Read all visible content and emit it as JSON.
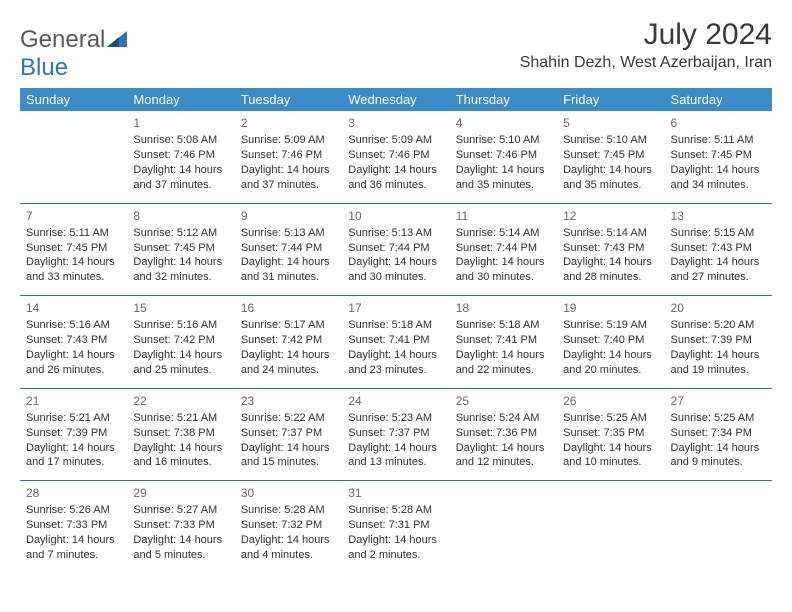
{
  "logo": {
    "general": "General",
    "blue": "Blue"
  },
  "header": {
    "month": "July 2024",
    "location": "Shahin Dezh, West Azerbaijan, Iran"
  },
  "colors": {
    "header_bg": "#3b8bc9",
    "header_text": "#ffffff",
    "row_border": "#3b6fa0",
    "text": "#333333",
    "daynum": "#6a6a6a",
    "logo_gray": "#5a5a5a",
    "logo_blue": "#2e75b6"
  },
  "day_names": [
    "Sunday",
    "Monday",
    "Tuesday",
    "Wednesday",
    "Thursday",
    "Friday",
    "Saturday"
  ],
  "weeks": [
    [
      null,
      {
        "n": "1",
        "sr": "Sunrise: 5:08 AM",
        "ss": "Sunset: 7:46 PM",
        "dl": "Daylight: 14 hours and 37 minutes."
      },
      {
        "n": "2",
        "sr": "Sunrise: 5:09 AM",
        "ss": "Sunset: 7:46 PM",
        "dl": "Daylight: 14 hours and 37 minutes."
      },
      {
        "n": "3",
        "sr": "Sunrise: 5:09 AM",
        "ss": "Sunset: 7:46 PM",
        "dl": "Daylight: 14 hours and 36 minutes."
      },
      {
        "n": "4",
        "sr": "Sunrise: 5:10 AM",
        "ss": "Sunset: 7:46 PM",
        "dl": "Daylight: 14 hours and 35 minutes."
      },
      {
        "n": "5",
        "sr": "Sunrise: 5:10 AM",
        "ss": "Sunset: 7:45 PM",
        "dl": "Daylight: 14 hours and 35 minutes."
      },
      {
        "n": "6",
        "sr": "Sunrise: 5:11 AM",
        "ss": "Sunset: 7:45 PM",
        "dl": "Daylight: 14 hours and 34 minutes."
      }
    ],
    [
      {
        "n": "7",
        "sr": "Sunrise: 5:11 AM",
        "ss": "Sunset: 7:45 PM",
        "dl": "Daylight: 14 hours and 33 minutes."
      },
      {
        "n": "8",
        "sr": "Sunrise: 5:12 AM",
        "ss": "Sunset: 7:45 PM",
        "dl": "Daylight: 14 hours and 32 minutes."
      },
      {
        "n": "9",
        "sr": "Sunrise: 5:13 AM",
        "ss": "Sunset: 7:44 PM",
        "dl": "Daylight: 14 hours and 31 minutes."
      },
      {
        "n": "10",
        "sr": "Sunrise: 5:13 AM",
        "ss": "Sunset: 7:44 PM",
        "dl": "Daylight: 14 hours and 30 minutes."
      },
      {
        "n": "11",
        "sr": "Sunrise: 5:14 AM",
        "ss": "Sunset: 7:44 PM",
        "dl": "Daylight: 14 hours and 30 minutes."
      },
      {
        "n": "12",
        "sr": "Sunrise: 5:14 AM",
        "ss": "Sunset: 7:43 PM",
        "dl": "Daylight: 14 hours and 28 minutes."
      },
      {
        "n": "13",
        "sr": "Sunrise: 5:15 AM",
        "ss": "Sunset: 7:43 PM",
        "dl": "Daylight: 14 hours and 27 minutes."
      }
    ],
    [
      {
        "n": "14",
        "sr": "Sunrise: 5:16 AM",
        "ss": "Sunset: 7:43 PM",
        "dl": "Daylight: 14 hours and 26 minutes."
      },
      {
        "n": "15",
        "sr": "Sunrise: 5:16 AM",
        "ss": "Sunset: 7:42 PM",
        "dl": "Daylight: 14 hours and 25 minutes."
      },
      {
        "n": "16",
        "sr": "Sunrise: 5:17 AM",
        "ss": "Sunset: 7:42 PM",
        "dl": "Daylight: 14 hours and 24 minutes."
      },
      {
        "n": "17",
        "sr": "Sunrise: 5:18 AM",
        "ss": "Sunset: 7:41 PM",
        "dl": "Daylight: 14 hours and 23 minutes."
      },
      {
        "n": "18",
        "sr": "Sunrise: 5:18 AM",
        "ss": "Sunset: 7:41 PM",
        "dl": "Daylight: 14 hours and 22 minutes."
      },
      {
        "n": "19",
        "sr": "Sunrise: 5:19 AM",
        "ss": "Sunset: 7:40 PM",
        "dl": "Daylight: 14 hours and 20 minutes."
      },
      {
        "n": "20",
        "sr": "Sunrise: 5:20 AM",
        "ss": "Sunset: 7:39 PM",
        "dl": "Daylight: 14 hours and 19 minutes."
      }
    ],
    [
      {
        "n": "21",
        "sr": "Sunrise: 5:21 AM",
        "ss": "Sunset: 7:39 PM",
        "dl": "Daylight: 14 hours and 17 minutes."
      },
      {
        "n": "22",
        "sr": "Sunrise: 5:21 AM",
        "ss": "Sunset: 7:38 PM",
        "dl": "Daylight: 14 hours and 16 minutes."
      },
      {
        "n": "23",
        "sr": "Sunrise: 5:22 AM",
        "ss": "Sunset: 7:37 PM",
        "dl": "Daylight: 14 hours and 15 minutes."
      },
      {
        "n": "24",
        "sr": "Sunrise: 5:23 AM",
        "ss": "Sunset: 7:37 PM",
        "dl": "Daylight: 14 hours and 13 minutes."
      },
      {
        "n": "25",
        "sr": "Sunrise: 5:24 AM",
        "ss": "Sunset: 7:36 PM",
        "dl": "Daylight: 14 hours and 12 minutes."
      },
      {
        "n": "26",
        "sr": "Sunrise: 5:25 AM",
        "ss": "Sunset: 7:35 PM",
        "dl": "Daylight: 14 hours and 10 minutes."
      },
      {
        "n": "27",
        "sr": "Sunrise: 5:25 AM",
        "ss": "Sunset: 7:34 PM",
        "dl": "Daylight: 14 hours and 9 minutes."
      }
    ],
    [
      {
        "n": "28",
        "sr": "Sunrise: 5:26 AM",
        "ss": "Sunset: 7:33 PM",
        "dl": "Daylight: 14 hours and 7 minutes."
      },
      {
        "n": "29",
        "sr": "Sunrise: 5:27 AM",
        "ss": "Sunset: 7:33 PM",
        "dl": "Daylight: 14 hours and 5 minutes."
      },
      {
        "n": "30",
        "sr": "Sunrise: 5:28 AM",
        "ss": "Sunset: 7:32 PM",
        "dl": "Daylight: 14 hours and 4 minutes."
      },
      {
        "n": "31",
        "sr": "Sunrise: 5:28 AM",
        "ss": "Sunset: 7:31 PM",
        "dl": "Daylight: 14 hours and 2 minutes."
      },
      null,
      null,
      null
    ]
  ]
}
